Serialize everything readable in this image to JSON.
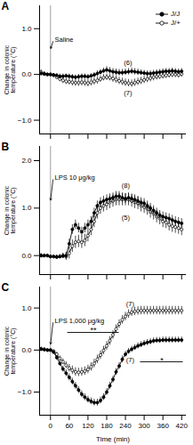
{
  "chart_data": [
    {
      "type": "line",
      "title": "A",
      "x": [
        -30,
        -20,
        -10,
        0,
        10,
        20,
        30,
        40,
        50,
        60,
        70,
        80,
        90,
        100,
        110,
        120,
        130,
        140,
        150,
        160,
        170,
        180,
        190,
        200,
        210,
        220,
        230,
        240,
        250,
        260,
        270,
        280,
        290,
        300,
        310,
        320,
        330,
        340,
        350,
        360,
        370,
        380,
        390,
        400,
        410,
        420
      ],
      "xlim": [
        -35,
        435
      ],
      "xticks": [
        0,
        60,
        120,
        180,
        240,
        300,
        360,
        420
      ],
      "ylim": [
        -1.3,
        1.5
      ],
      "yticks": [
        -1,
        0,
        1
      ],
      "ylabel": "Change in colonic\ntemperature (°C)",
      "tick_labels": "y",
      "legend": "upper right",
      "series": [
        {
          "name": "J/J",
          "color": "black",
          "marker": "circle",
          "values": [
            0.02,
            0.01,
            0.0,
            0.0,
            -0.01,
            -0.02,
            -0.04,
            -0.04,
            -0.03,
            -0.04,
            -0.05,
            -0.06,
            -0.05,
            -0.04,
            -0.04,
            -0.05,
            -0.03,
            -0.01,
            0.02,
            0.05,
            0.08,
            0.1,
            0.08,
            0.06,
            0.05,
            0.04,
            0.04,
            0.05,
            0.06,
            0.07,
            0.06,
            0.05,
            0.04,
            0.03,
            0.02,
            0.02,
            0.03,
            0.04,
            0.05,
            0.06,
            0.07,
            0.07,
            0.08,
            0.07,
            0.06,
            0.07
          ],
          "errors": [
            0.04,
            0.03,
            0.02,
            0.02,
            0.03,
            0.04,
            0.05,
            0.05,
            0.04,
            0.05,
            0.05,
            0.05,
            0.05,
            0.05,
            0.05,
            0.05,
            0.05,
            0.05,
            0.06,
            0.06,
            0.06,
            0.07,
            0.07,
            0.07,
            0.07,
            0.07,
            0.07,
            0.07,
            0.07,
            0.07,
            0.07,
            0.07,
            0.06,
            0.06,
            0.06,
            0.06,
            0.06,
            0.06,
            0.06,
            0.06,
            0.06,
            0.06,
            0.06,
            0.06,
            0.06,
            0.06
          ]
        },
        {
          "name": "J/+",
          "color": "black",
          "marker": "circle_open",
          "values": [
            0.05,
            0.02,
            0.0,
            0.0,
            -0.02,
            -0.06,
            -0.1,
            -0.13,
            -0.15,
            -0.16,
            -0.17,
            -0.18,
            -0.18,
            -0.17,
            -0.18,
            -0.19,
            -0.17,
            -0.15,
            -0.13,
            -0.1,
            -0.07,
            -0.06,
            -0.07,
            -0.09,
            -0.11,
            -0.14,
            -0.16,
            -0.18,
            -0.19,
            -0.2,
            -0.18,
            -0.16,
            -0.14,
            -0.12,
            -0.1,
            -0.08,
            -0.06,
            -0.05,
            -0.04,
            -0.03,
            -0.02,
            -0.01,
            0.0,
            0.0,
            -0.01,
            0.01
          ],
          "errors": [
            0.05,
            0.04,
            0.03,
            0.03,
            0.04,
            0.05,
            0.06,
            0.07,
            0.07,
            0.07,
            0.08,
            0.08,
            0.08,
            0.08,
            0.08,
            0.08,
            0.08,
            0.08,
            0.08,
            0.07,
            0.07,
            0.07,
            0.07,
            0.08,
            0.08,
            0.08,
            0.08,
            0.08,
            0.08,
            0.08,
            0.08,
            0.08,
            0.08,
            0.08,
            0.08,
            0.08,
            0.08,
            0.07,
            0.07,
            0.07,
            0.07,
            0.07,
            0.07,
            0.07,
            0.07,
            0.07
          ]
        }
      ],
      "reference_lines": [
        {
          "x": 0,
          "color": "#888888"
        }
      ],
      "annotations": [
        {
          "text": "Saline",
          "x": 8,
          "y": 0.72,
          "arrow_to": [
            0,
            0.55
          ]
        },
        {
          "text": "(6)",
          "x": 235,
          "y": 0.2
        },
        {
          "text": "(7)",
          "x": 235,
          "y": -0.45
        }
      ]
    },
    {
      "type": "line",
      "title": "B",
      "x": [
        -30,
        -20,
        -10,
        0,
        10,
        20,
        30,
        40,
        50,
        60,
        70,
        80,
        90,
        100,
        110,
        120,
        130,
        140,
        150,
        160,
        170,
        180,
        190,
        200,
        210,
        220,
        230,
        240,
        250,
        260,
        270,
        280,
        290,
        300,
        310,
        320,
        330,
        340,
        350,
        360,
        370,
        380,
        390,
        400,
        410,
        420
      ],
      "xlim": [
        -35,
        435
      ],
      "xticks": [
        0,
        60,
        120,
        180,
        240,
        300,
        360,
        420
      ],
      "ylim": [
        -0.4,
        2.3
      ],
      "yticks": [
        0,
        1,
        2
      ],
      "ylabel": "Change in colonic\ntemperature (°C)",
      "tick_labels": "y",
      "series": [
        {
          "name": "J/J",
          "color": "black",
          "marker": "circle",
          "values": [
            0.0,
            0.0,
            0.0,
            -0.02,
            -0.02,
            -0.03,
            -0.02,
            -0.01,
            0.0,
            0.25,
            0.55,
            0.65,
            0.58,
            0.5,
            0.58,
            0.65,
            0.72,
            0.9,
            1.05,
            1.12,
            1.15,
            1.18,
            1.2,
            1.22,
            1.25,
            1.25,
            1.22,
            1.2,
            1.22,
            1.2,
            1.18,
            1.15,
            1.12,
            1.1,
            1.05,
            1.0,
            0.95,
            0.9,
            0.85,
            0.82,
            0.8,
            0.78,
            0.75,
            0.72,
            0.7,
            0.68
          ],
          "errors": [
            0.04,
            0.03,
            0.03,
            0.03,
            0.03,
            0.04,
            0.04,
            0.05,
            0.07,
            0.1,
            0.1,
            0.1,
            0.1,
            0.1,
            0.1,
            0.1,
            0.1,
            0.1,
            0.1,
            0.1,
            0.1,
            0.1,
            0.1,
            0.1,
            0.1,
            0.1,
            0.1,
            0.1,
            0.1,
            0.1,
            0.1,
            0.1,
            0.1,
            0.1,
            0.1,
            0.1,
            0.1,
            0.1,
            0.1,
            0.1,
            0.1,
            0.1,
            0.1,
            0.1,
            0.1,
            0.1
          ]
        },
        {
          "name": "J/+",
          "color": "black",
          "marker": "circle_open",
          "values": [
            0.0,
            0.0,
            0.0,
            -0.02,
            -0.02,
            -0.03,
            -0.02,
            0.0,
            -0.02,
            0.05,
            0.2,
            0.28,
            0.3,
            0.28,
            0.32,
            0.42,
            0.55,
            0.72,
            0.9,
            1.0,
            1.05,
            1.08,
            1.12,
            1.15,
            1.18,
            1.18,
            1.18,
            1.18,
            1.18,
            1.15,
            1.12,
            1.1,
            1.05,
            1.02,
            0.98,
            0.92,
            0.88,
            0.82,
            0.78,
            0.72,
            0.7,
            0.65,
            0.62,
            0.6,
            0.58,
            0.55
          ],
          "errors": [
            0.04,
            0.03,
            0.03,
            0.03,
            0.03,
            0.04,
            0.04,
            0.05,
            0.08,
            0.12,
            0.13,
            0.13,
            0.13,
            0.13,
            0.13,
            0.13,
            0.13,
            0.13,
            0.13,
            0.13,
            0.13,
            0.13,
            0.13,
            0.13,
            0.13,
            0.13,
            0.13,
            0.13,
            0.13,
            0.13,
            0.13,
            0.13,
            0.13,
            0.13,
            0.13,
            0.13,
            0.13,
            0.13,
            0.13,
            0.13,
            0.13,
            0.13,
            0.13,
            0.13,
            0.13,
            0.13
          ]
        }
      ],
      "reference_lines": [
        {
          "x": 0,
          "color": "#888888"
        }
      ],
      "annotations": [
        {
          "text": "LPS 10 μg/kg",
          "x": 8,
          "y": 1.6,
          "arrow_to": [
            0,
            1.15
          ]
        },
        {
          "text": "(8)",
          "x": 228,
          "y": 1.42
        },
        {
          "text": "(5)",
          "x": 228,
          "y": 0.75
        }
      ]
    },
    {
      "type": "line",
      "title": "C",
      "x": [
        -30,
        -20,
        -10,
        0,
        10,
        20,
        30,
        40,
        50,
        60,
        70,
        80,
        90,
        100,
        110,
        120,
        130,
        140,
        150,
        160,
        170,
        180,
        190,
        200,
        210,
        220,
        230,
        240,
        250,
        260,
        270,
        280,
        290,
        300,
        310,
        320,
        330,
        340,
        350,
        360,
        370,
        380,
        390,
        400,
        410,
        420
      ],
      "xlim": [
        -35,
        435
      ],
      "xticks": [
        0,
        60,
        120,
        180,
        240,
        300,
        360,
        420
      ],
      "xlabel": "Time (min)",
      "ylim": [
        -1.55,
        1.5
      ],
      "yticks": [
        -1,
        0,
        1
      ],
      "ylabel": "Change in colonic\ntemperature (°C)",
      "series": [
        {
          "name": "J/J",
          "color": "black",
          "marker": "circle",
          "values": [
            0.02,
            0.01,
            0.0,
            0.0,
            -0.05,
            -0.18,
            -0.32,
            -0.45,
            -0.55,
            -0.65,
            -0.75,
            -0.85,
            -0.95,
            -1.05,
            -1.12,
            -1.18,
            -1.22,
            -1.25,
            -1.25,
            -1.2,
            -1.12,
            -1.0,
            -0.85,
            -0.7,
            -0.52,
            -0.38,
            -0.22,
            -0.1,
            -0.03,
            0.02,
            0.06,
            0.1,
            0.13,
            0.16,
            0.18,
            0.2,
            0.22,
            0.23,
            0.23,
            0.24,
            0.24,
            0.24,
            0.24,
            0.24,
            0.24,
            0.24
          ],
          "errors": [
            0.04,
            0.03,
            0.02,
            0.02,
            0.04,
            0.05,
            0.06,
            0.07,
            0.08,
            0.08,
            0.08,
            0.08,
            0.08,
            0.08,
            0.08,
            0.08,
            0.08,
            0.08,
            0.08,
            0.08,
            0.08,
            0.08,
            0.08,
            0.08,
            0.08,
            0.08,
            0.08,
            0.07,
            0.07,
            0.07,
            0.07,
            0.07,
            0.07,
            0.07,
            0.07,
            0.07,
            0.07,
            0.07,
            0.07,
            0.07,
            0.07,
            0.07,
            0.07,
            0.07,
            0.07,
            0.07
          ]
        },
        {
          "name": "J/+",
          "color": "black",
          "marker": "circle_open",
          "values": [
            0.03,
            0.02,
            0.0,
            0.0,
            -0.03,
            -0.1,
            -0.2,
            -0.28,
            -0.36,
            -0.43,
            -0.48,
            -0.52,
            -0.53,
            -0.52,
            -0.5,
            -0.46,
            -0.4,
            -0.32,
            -0.22,
            -0.12,
            -0.01,
            0.1,
            0.22,
            0.36,
            0.5,
            0.62,
            0.72,
            0.8,
            0.86,
            0.9,
            0.92,
            0.93,
            0.94,
            0.94,
            0.94,
            0.94,
            0.94,
            0.94,
            0.94,
            0.94,
            0.94,
            0.94,
            0.94,
            0.94,
            0.94,
            0.94
          ],
          "errors": [
            0.04,
            0.03,
            0.02,
            0.02,
            0.04,
            0.05,
            0.06,
            0.07,
            0.08,
            0.09,
            0.1,
            0.1,
            0.1,
            0.1,
            0.1,
            0.1,
            0.1,
            0.1,
            0.1,
            0.1,
            0.1,
            0.1,
            0.1,
            0.1,
            0.1,
            0.1,
            0.1,
            0.1,
            0.1,
            0.1,
            0.1,
            0.1,
            0.1,
            0.1,
            0.1,
            0.1,
            0.1,
            0.1,
            0.1,
            0.1,
            0.1,
            0.1,
            0.1,
            0.1,
            0.1,
            0.1
          ]
        }
      ],
      "reference_lines": [
        {
          "x": 0,
          "color": "#888888"
        }
      ],
      "annotations": [
        {
          "text": "LPS 1,000 μg/kg",
          "x": 8,
          "y": 0.65,
          "arrow_to": [
            0,
            0.12
          ]
        },
        {
          "text": "**",
          "x": [
            55,
            220
          ],
          "y": 0.42
        },
        {
          "text": "*",
          "x": [
            288,
            425
          ],
          "y": -0.28
        },
        {
          "text": "(7)",
          "x": 242,
          "y": 1.05
        },
        {
          "text": "(7)",
          "x": 242,
          "y": -0.28
        }
      ]
    }
  ]
}
